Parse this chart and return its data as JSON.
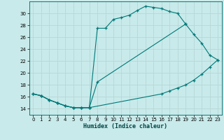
{
  "xlabel": "Humidex (Indice chaleur)",
  "bg_color": "#c8eaea",
  "grid_color": "#b8d8d8",
  "line_color": "#007878",
  "xlim": [
    -0.5,
    23.5
  ],
  "ylim": [
    13.0,
    32.0
  ],
  "xticks": [
    0,
    1,
    2,
    3,
    4,
    5,
    6,
    7,
    8,
    9,
    10,
    11,
    12,
    13,
    14,
    15,
    16,
    17,
    18,
    19,
    20,
    21,
    22,
    23
  ],
  "yticks": [
    14,
    16,
    18,
    20,
    22,
    24,
    26,
    28,
    30
  ],
  "line1": {
    "x": [
      0,
      1,
      2,
      3,
      4,
      5,
      6,
      7,
      8,
      9,
      10,
      11,
      12,
      13,
      14,
      15,
      16,
      17,
      18,
      19
    ],
    "y": [
      16.5,
      16.2,
      15.5,
      15.0,
      14.5,
      14.2,
      14.2,
      14.2,
      27.5,
      27.5,
      29.0,
      29.3,
      29.7,
      30.5,
      31.2,
      31.0,
      30.8,
      30.3,
      30.0,
      28.2
    ]
  },
  "line2": {
    "x": [
      0,
      1,
      2,
      3,
      4,
      5,
      6,
      7,
      8,
      19,
      20,
      21,
      22,
      23
    ],
    "y": [
      16.5,
      16.2,
      15.5,
      15.0,
      14.5,
      14.2,
      14.2,
      14.2,
      18.5,
      28.2,
      26.5,
      25.0,
      23.0,
      22.2
    ]
  },
  "line3": {
    "x": [
      0,
      1,
      2,
      3,
      4,
      5,
      6,
      7,
      16,
      17,
      18,
      19,
      20,
      21,
      22,
      23
    ],
    "y": [
      16.5,
      16.2,
      15.5,
      15.0,
      14.5,
      14.2,
      14.2,
      14.2,
      16.5,
      17.0,
      17.5,
      18.0,
      18.8,
      19.8,
      21.0,
      22.2
    ]
  }
}
